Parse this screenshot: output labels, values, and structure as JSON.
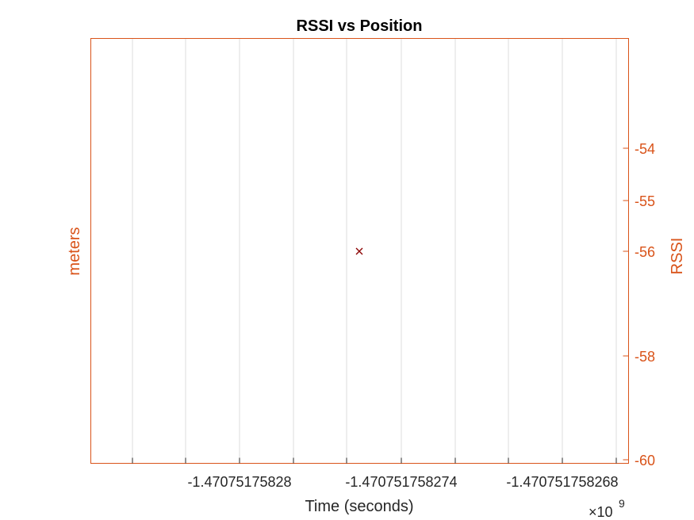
{
  "chart_data": {
    "type": "scatter",
    "title": "RSSI vs Position",
    "xlabel": "Time (seconds)",
    "ylabel_left": "meters",
    "ylabel_right": "RSSI",
    "x_exponent_label": "×10",
    "x_exponent_power": "9",
    "x_ticks": [
      {
        "label": "-1.47075175828"
      },
      {
        "label": "-1.470751758274"
      },
      {
        "label": "-1.470751758268"
      }
    ],
    "y_ticks_right": [
      -54,
      -55,
      -56,
      -58,
      -60
    ],
    "right_ylim": [
      -60,
      -53
    ],
    "x_scale": "log",
    "grid": "x",
    "points": [
      {
        "x_label": "-1.470751758276 ×10^9",
        "y": -56,
        "marker": "x"
      }
    ],
    "colors": {
      "axis_accent": "#D95319",
      "marker": "#8B0000",
      "grid": "#DCDCDC",
      "axis_box": "#262626"
    }
  }
}
